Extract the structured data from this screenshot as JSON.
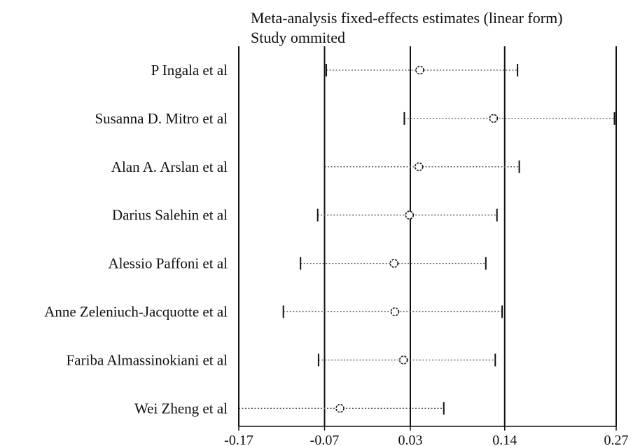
{
  "chart_data": {
    "type": "forest",
    "title": "Meta-analysis fixed-effects estimates (linear form)",
    "subtitle": "Study ommited",
    "xticks": [
      -0.17,
      -0.07,
      0.03,
      0.14,
      0.27
    ],
    "xlim": [
      -0.17,
      0.27
    ],
    "reference_lines": [
      -0.07,
      0.03,
      0.14
    ],
    "studies": [
      {
        "label": "P Ingala et al",
        "lower": -0.068,
        "estimate": 0.041,
        "upper": 0.155
      },
      {
        "label": "Susanna D. Mitro et al",
        "lower": 0.023,
        "estimate": 0.127,
        "upper": 0.268
      },
      {
        "label": "Alan A. Arslan et al",
        "lower": -0.07,
        "estimate": 0.04,
        "upper": 0.157
      },
      {
        "label": "Darius Salehin et al",
        "lower": -0.078,
        "estimate": 0.029,
        "upper": 0.131
      },
      {
        "label": "Alessio Paffoni et al",
        "lower": -0.098,
        "estimate": 0.011,
        "upper": 0.118
      },
      {
        "label": "Anne Zeleniuch-Jacquotte et al",
        "lower": -0.118,
        "estimate": 0.012,
        "upper": 0.137
      },
      {
        "label": "Fariba Almassinokiani et al",
        "lower": -0.077,
        "estimate": 0.022,
        "upper": 0.129
      },
      {
        "label": "Wei Zheng et al",
        "lower": -0.17,
        "estimate": -0.052,
        "upper": 0.069
      }
    ]
  }
}
